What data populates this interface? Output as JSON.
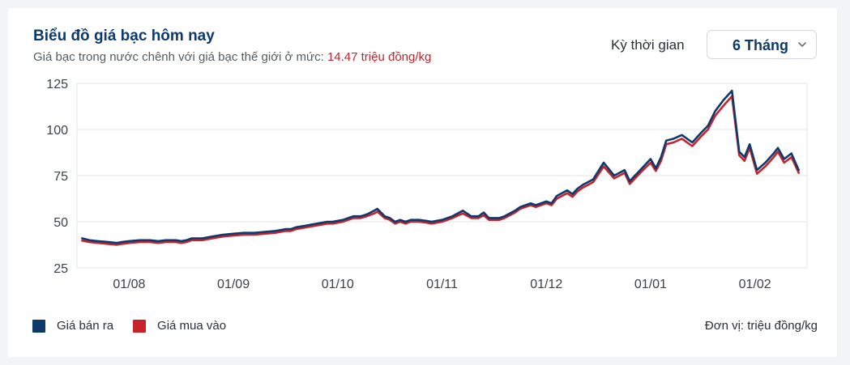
{
  "header": {
    "title": "Biểu đồ giá bạc hôm nay",
    "subtitle_prefix": "Giá bạc trong nước chênh với giá bạc thế giới ở mức: ",
    "subtitle_value": "14.47 triệu đồng/kg",
    "period_label": "Kỳ thời gian",
    "period_value": "6 Tháng"
  },
  "footer": {
    "unit": "Đơn vị: triệu đồng/kg"
  },
  "colors": {
    "sell": "#0d3a6b",
    "buy": "#c8232c",
    "grid": "#e3e6ea",
    "axis_text": "#3c4148"
  },
  "chart_data": {
    "type": "line",
    "ylim": [
      25,
      125
    ],
    "yticks": [
      25,
      50,
      75,
      100,
      125
    ],
    "xlim": [
      0,
      7
    ],
    "xticks": [
      {
        "x": 0.5,
        "label": "01/08"
      },
      {
        "x": 1.5,
        "label": "01/09"
      },
      {
        "x": 2.5,
        "label": "01/10"
      },
      {
        "x": 3.5,
        "label": "01/11"
      },
      {
        "x": 4.5,
        "label": "01/12"
      },
      {
        "x": 5.5,
        "label": "01/01"
      },
      {
        "x": 6.5,
        "label": "01/02"
      }
    ],
    "legend_position": "bottom-left",
    "grid": true,
    "series": [
      {
        "name": "Giá bán ra",
        "color": "#0d3a6b",
        "x": [
          0.05,
          0.12,
          0.2,
          0.3,
          0.38,
          0.43,
          0.5,
          0.6,
          0.7,
          0.78,
          0.85,
          0.95,
          1.0,
          1.05,
          1.1,
          1.2,
          1.3,
          1.4,
          1.5,
          1.6,
          1.7,
          1.8,
          1.9,
          2.0,
          2.05,
          2.1,
          2.2,
          2.3,
          2.4,
          2.45,
          2.55,
          2.65,
          2.72,
          2.78,
          2.85,
          2.88,
          2.95,
          3.0,
          3.05,
          3.1,
          3.15,
          3.2,
          3.28,
          3.35,
          3.4,
          3.5,
          3.6,
          3.7,
          3.78,
          3.85,
          3.9,
          3.95,
          4.05,
          4.1,
          4.2,
          4.25,
          4.35,
          4.4,
          4.5,
          4.55,
          4.6,
          4.7,
          4.75,
          4.8,
          4.85,
          4.95,
          5.05,
          5.15,
          5.25,
          5.3,
          5.4,
          5.5,
          5.55,
          5.6,
          5.65,
          5.72,
          5.8,
          5.9,
          5.98,
          6.05,
          6.12,
          6.2,
          6.28,
          6.35,
          6.4,
          6.45,
          6.52,
          6.6,
          6.68,
          6.72,
          6.78,
          6.85,
          6.92
        ],
        "values": [
          41,
          40,
          39.5,
          39,
          38.5,
          39,
          39.5,
          40,
          40,
          39.5,
          40,
          40,
          39.5,
          40,
          41,
          41,
          42,
          43,
          43.5,
          44,
          44,
          44.5,
          45,
          46,
          46,
          47,
          48,
          49,
          50,
          50,
          51,
          53,
          53,
          54,
          56,
          57,
          53,
          52,
          50,
          51,
          50,
          51,
          51,
          50.5,
          50,
          51,
          53,
          56,
          53,
          53,
          55,
          52,
          52,
          53,
          56,
          58,
          60,
          59,
          61,
          60,
          64,
          67,
          65,
          68,
          70,
          73,
          82,
          75,
          78,
          72,
          78,
          84,
          79,
          85,
          94,
          95,
          97,
          93,
          98,
          102,
          110,
          116,
          121,
          88,
          85,
          92,
          78,
          82,
          87,
          90,
          84,
          87,
          78
        ],
        "note": "approximate readings"
      },
      {
        "name": "Giá mua vào",
        "color": "#c8232c",
        "x": [
          0.05,
          0.12,
          0.2,
          0.3,
          0.38,
          0.43,
          0.5,
          0.6,
          0.7,
          0.78,
          0.85,
          0.95,
          1.0,
          1.05,
          1.1,
          1.2,
          1.3,
          1.4,
          1.5,
          1.6,
          1.7,
          1.8,
          1.9,
          2.0,
          2.05,
          2.1,
          2.2,
          2.3,
          2.4,
          2.45,
          2.55,
          2.65,
          2.72,
          2.78,
          2.85,
          2.88,
          2.95,
          3.0,
          3.05,
          3.1,
          3.15,
          3.2,
          3.28,
          3.35,
          3.4,
          3.5,
          3.6,
          3.7,
          3.78,
          3.85,
          3.9,
          3.95,
          4.05,
          4.1,
          4.2,
          4.25,
          4.35,
          4.4,
          4.5,
          4.55,
          4.6,
          4.7,
          4.75,
          4.8,
          4.85,
          4.95,
          5.05,
          5.15,
          5.25,
          5.3,
          5.4,
          5.5,
          5.55,
          5.6,
          5.65,
          5.72,
          5.8,
          5.9,
          5.98,
          6.05,
          6.12,
          6.2,
          6.28,
          6.35,
          6.4,
          6.45,
          6.52,
          6.6,
          6.68,
          6.72,
          6.78,
          6.85,
          6.92
        ],
        "values": [
          39.8,
          39,
          38.5,
          38,
          37.5,
          38,
          38.5,
          39,
          39,
          38.5,
          39,
          39,
          38.5,
          39,
          40,
          40,
          41,
          42,
          42.5,
          43,
          43,
          43.5,
          44,
          45,
          45,
          46,
          47,
          48,
          49,
          49,
          50,
          52,
          52,
          53,
          54.5,
          55.5,
          52,
          51,
          49,
          50,
          49,
          50,
          50,
          49.5,
          49,
          50,
          52,
          54.5,
          52,
          52,
          53.5,
          51,
          51,
          52,
          55,
          57,
          59,
          58,
          60,
          59,
          62.5,
          65.5,
          63.5,
          66.5,
          68.5,
          71.5,
          80,
          73.5,
          76.5,
          70.5,
          76.5,
          82,
          77.5,
          83,
          92,
          93,
          95,
          91,
          96,
          100,
          107.5,
          113,
          118,
          86,
          83,
          90,
          76,
          80,
          85,
          88,
          82,
          85,
          76.5
        ],
        "note": "approximate readings"
      }
    ]
  }
}
